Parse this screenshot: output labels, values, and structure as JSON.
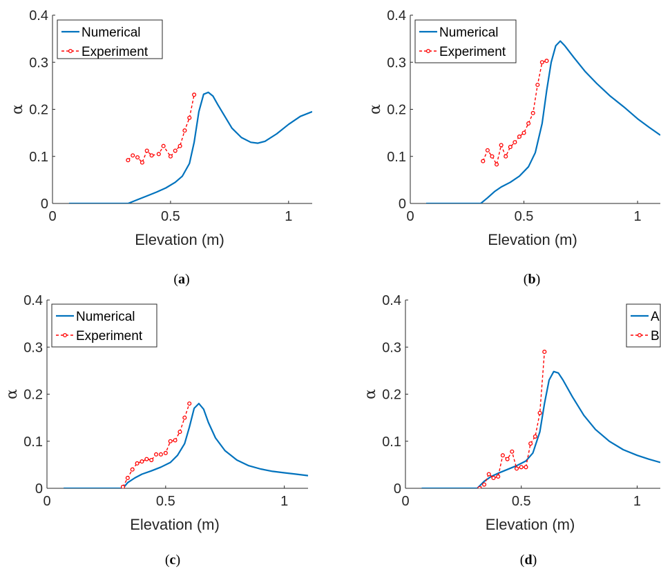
{
  "colors": {
    "numerical": "#0072BD",
    "experiment": "#FF0000",
    "axis": "#262626"
  },
  "chart_data": [
    {
      "type": "line",
      "caption_open": "(",
      "caption_letter": "a",
      "caption_close": ")",
      "xlabel": "Elevation (m)",
      "ylabel": "α",
      "xlim": [
        0,
        1.1
      ],
      "ylim": [
        0,
        0.4
      ],
      "xticks": [
        0,
        0.5,
        1
      ],
      "xtick_labels": [
        "0",
        "0.5",
        "1"
      ],
      "yticks": [
        0,
        0.1,
        0.2,
        0.3,
        0.4
      ],
      "ytick_labels": [
        "0",
        "0.1",
        "0.2",
        "0.3",
        "0.4"
      ],
      "legend": "top-left",
      "series": [
        {
          "name": "Numerical",
          "style": "solid",
          "x": [
            0.07,
            0.25,
            0.32,
            0.36,
            0.4,
            0.44,
            0.48,
            0.52,
            0.55,
            0.58,
            0.6,
            0.62,
            0.64,
            0.66,
            0.68,
            0.7,
            0.73,
            0.76,
            0.8,
            0.84,
            0.87,
            0.9,
            0.95,
            1.0,
            1.05,
            1.1
          ],
          "y": [
            0,
            0,
            0,
            0.008,
            0.016,
            0.024,
            0.033,
            0.045,
            0.058,
            0.085,
            0.13,
            0.195,
            0.232,
            0.236,
            0.228,
            0.21,
            0.185,
            0.16,
            0.14,
            0.13,
            0.128,
            0.132,
            0.148,
            0.168,
            0.185,
            0.195
          ]
        },
        {
          "name": "Experiment",
          "style": "dashed-marker",
          "x": [
            0.32,
            0.34,
            0.36,
            0.38,
            0.4,
            0.42,
            0.45,
            0.47,
            0.5,
            0.52,
            0.54,
            0.56,
            0.58,
            0.6
          ],
          "y": [
            0.092,
            0.102,
            0.098,
            0.087,
            0.112,
            0.102,
            0.105,
            0.122,
            0.1,
            0.112,
            0.122,
            0.155,
            0.182,
            0.231
          ]
        }
      ]
    },
    {
      "type": "line",
      "caption_open": "(",
      "caption_letter": "b",
      "caption_close": ")",
      "xlabel": "Elevation (m)",
      "ylabel": "α",
      "xlim": [
        0,
        1.1
      ],
      "ylim": [
        0,
        0.4
      ],
      "xticks": [
        0,
        0.5,
        1
      ],
      "xtick_labels": [
        "0",
        "0.5",
        "1"
      ],
      "yticks": [
        0,
        0.1,
        0.2,
        0.3,
        0.4
      ],
      "ytick_labels": [
        "0",
        "0.1",
        "0.2",
        "0.3",
        "0.4"
      ],
      "legend": "top-left",
      "series": [
        {
          "name": "Numerical",
          "style": "solid",
          "x": [
            0.07,
            0.08,
            0.15,
            0.23,
            0.31,
            0.34,
            0.37,
            0.4,
            0.44,
            0.48,
            0.52,
            0.55,
            0.58,
            0.6,
            0.62,
            0.64,
            0.66,
            0.68,
            0.72,
            0.77,
            0.82,
            0.88,
            0.94,
            1.0,
            1.05,
            1.1
          ],
          "y": [
            0,
            0,
            0,
            0,
            0,
            0.012,
            0.025,
            0.035,
            0.045,
            0.058,
            0.078,
            0.108,
            0.17,
            0.24,
            0.3,
            0.335,
            0.345,
            0.335,
            0.31,
            0.28,
            0.255,
            0.228,
            0.205,
            0.18,
            0.162,
            0.145
          ]
        },
        {
          "name": "Experiment",
          "style": "dashed-marker",
          "x": [
            0.32,
            0.34,
            0.36,
            0.38,
            0.4,
            0.42,
            0.44,
            0.46,
            0.48,
            0.5,
            0.52,
            0.54,
            0.56,
            0.58,
            0.6
          ],
          "y": [
            0.09,
            0.113,
            0.1,
            0.083,
            0.124,
            0.1,
            0.12,
            0.13,
            0.142,
            0.15,
            0.17,
            0.192,
            0.252,
            0.3,
            0.303
          ]
        }
      ]
    },
    {
      "type": "line",
      "caption_open": "(",
      "caption_letter": "c",
      "caption_close": ")",
      "xlabel": "Elevation (m)",
      "ylabel": "α",
      "xlim": [
        0,
        1.1
      ],
      "ylim": [
        0,
        0.4
      ],
      "xticks": [
        0,
        0.5,
        1
      ],
      "xtick_labels": [
        "0",
        "0.5",
        "1"
      ],
      "yticks": [
        0,
        0.1,
        0.2,
        0.3,
        0.4
      ],
      "ytick_labels": [
        "0",
        "0.1",
        "0.2",
        "0.3",
        "0.4"
      ],
      "legend": "top-left",
      "series": [
        {
          "name": "Numerical",
          "style": "solid",
          "x": [
            0.07,
            0.24,
            0.32,
            0.34,
            0.37,
            0.4,
            0.44,
            0.48,
            0.52,
            0.55,
            0.58,
            0.6,
            0.62,
            0.64,
            0.66,
            0.68,
            0.71,
            0.75,
            0.8,
            0.85,
            0.9,
            0.95,
            1.0,
            1.05,
            1.1
          ],
          "y": [
            0,
            0,
            0,
            0.012,
            0.022,
            0.03,
            0.037,
            0.045,
            0.055,
            0.07,
            0.095,
            0.13,
            0.17,
            0.18,
            0.168,
            0.14,
            0.107,
            0.08,
            0.06,
            0.048,
            0.041,
            0.036,
            0.033,
            0.03,
            0.027
          ]
        },
        {
          "name": "Experiment",
          "style": "dashed-marker",
          "x": [
            0.32,
            0.34,
            0.36,
            0.38,
            0.4,
            0.42,
            0.44,
            0.46,
            0.48,
            0.5,
            0.52,
            0.54,
            0.56,
            0.58,
            0.6
          ],
          "y": [
            0.003,
            0.022,
            0.04,
            0.053,
            0.057,
            0.062,
            0.06,
            0.072,
            0.072,
            0.075,
            0.1,
            0.102,
            0.12,
            0.15,
            0.18
          ]
        }
      ]
    },
    {
      "type": "line",
      "caption_open": "(",
      "caption_letter": "d",
      "caption_close": ")",
      "xlabel": "Elevation (m)",
      "ylabel": "α",
      "xlim": [
        0,
        1.1
      ],
      "ylim": [
        0,
        0.4
      ],
      "xticks": [
        0,
        0.5,
        1
      ],
      "xtick_labels": [
        "0",
        "0.5",
        "1"
      ],
      "yticks": [
        0,
        0.1,
        0.2,
        0.3,
        0.4
      ],
      "ytick_labels": [
        "0",
        "0.1",
        "0.2",
        "0.3",
        "0.4"
      ],
      "legend": "top-right",
      "series": [
        {
          "name": "A",
          "style": "solid",
          "x": [
            0.07,
            0.08,
            0.15,
            0.23,
            0.31,
            0.34,
            0.37,
            0.4,
            0.44,
            0.48,
            0.52,
            0.55,
            0.58,
            0.6,
            0.62,
            0.64,
            0.66,
            0.68,
            0.72,
            0.77,
            0.82,
            0.88,
            0.94,
            1.0,
            1.05,
            1.1
          ],
          "y": [
            0,
            0,
            0,
            0,
            0,
            0.015,
            0.025,
            0.032,
            0.04,
            0.048,
            0.058,
            0.075,
            0.12,
            0.18,
            0.23,
            0.248,
            0.245,
            0.23,
            0.195,
            0.155,
            0.125,
            0.1,
            0.082,
            0.07,
            0.062,
            0.055
          ]
        },
        {
          "name": "B",
          "style": "dashed-marker",
          "x": [
            0.32,
            0.34,
            0.36,
            0.38,
            0.4,
            0.42,
            0.44,
            0.46,
            0.48,
            0.5,
            0.52,
            0.54,
            0.56,
            0.58,
            0.6
          ],
          "y": [
            0.0,
            0.008,
            0.03,
            0.022,
            0.025,
            0.07,
            0.062,
            0.078,
            0.042,
            0.045,
            0.045,
            0.095,
            0.11,
            0.16,
            0.29
          ]
        }
      ]
    }
  ]
}
